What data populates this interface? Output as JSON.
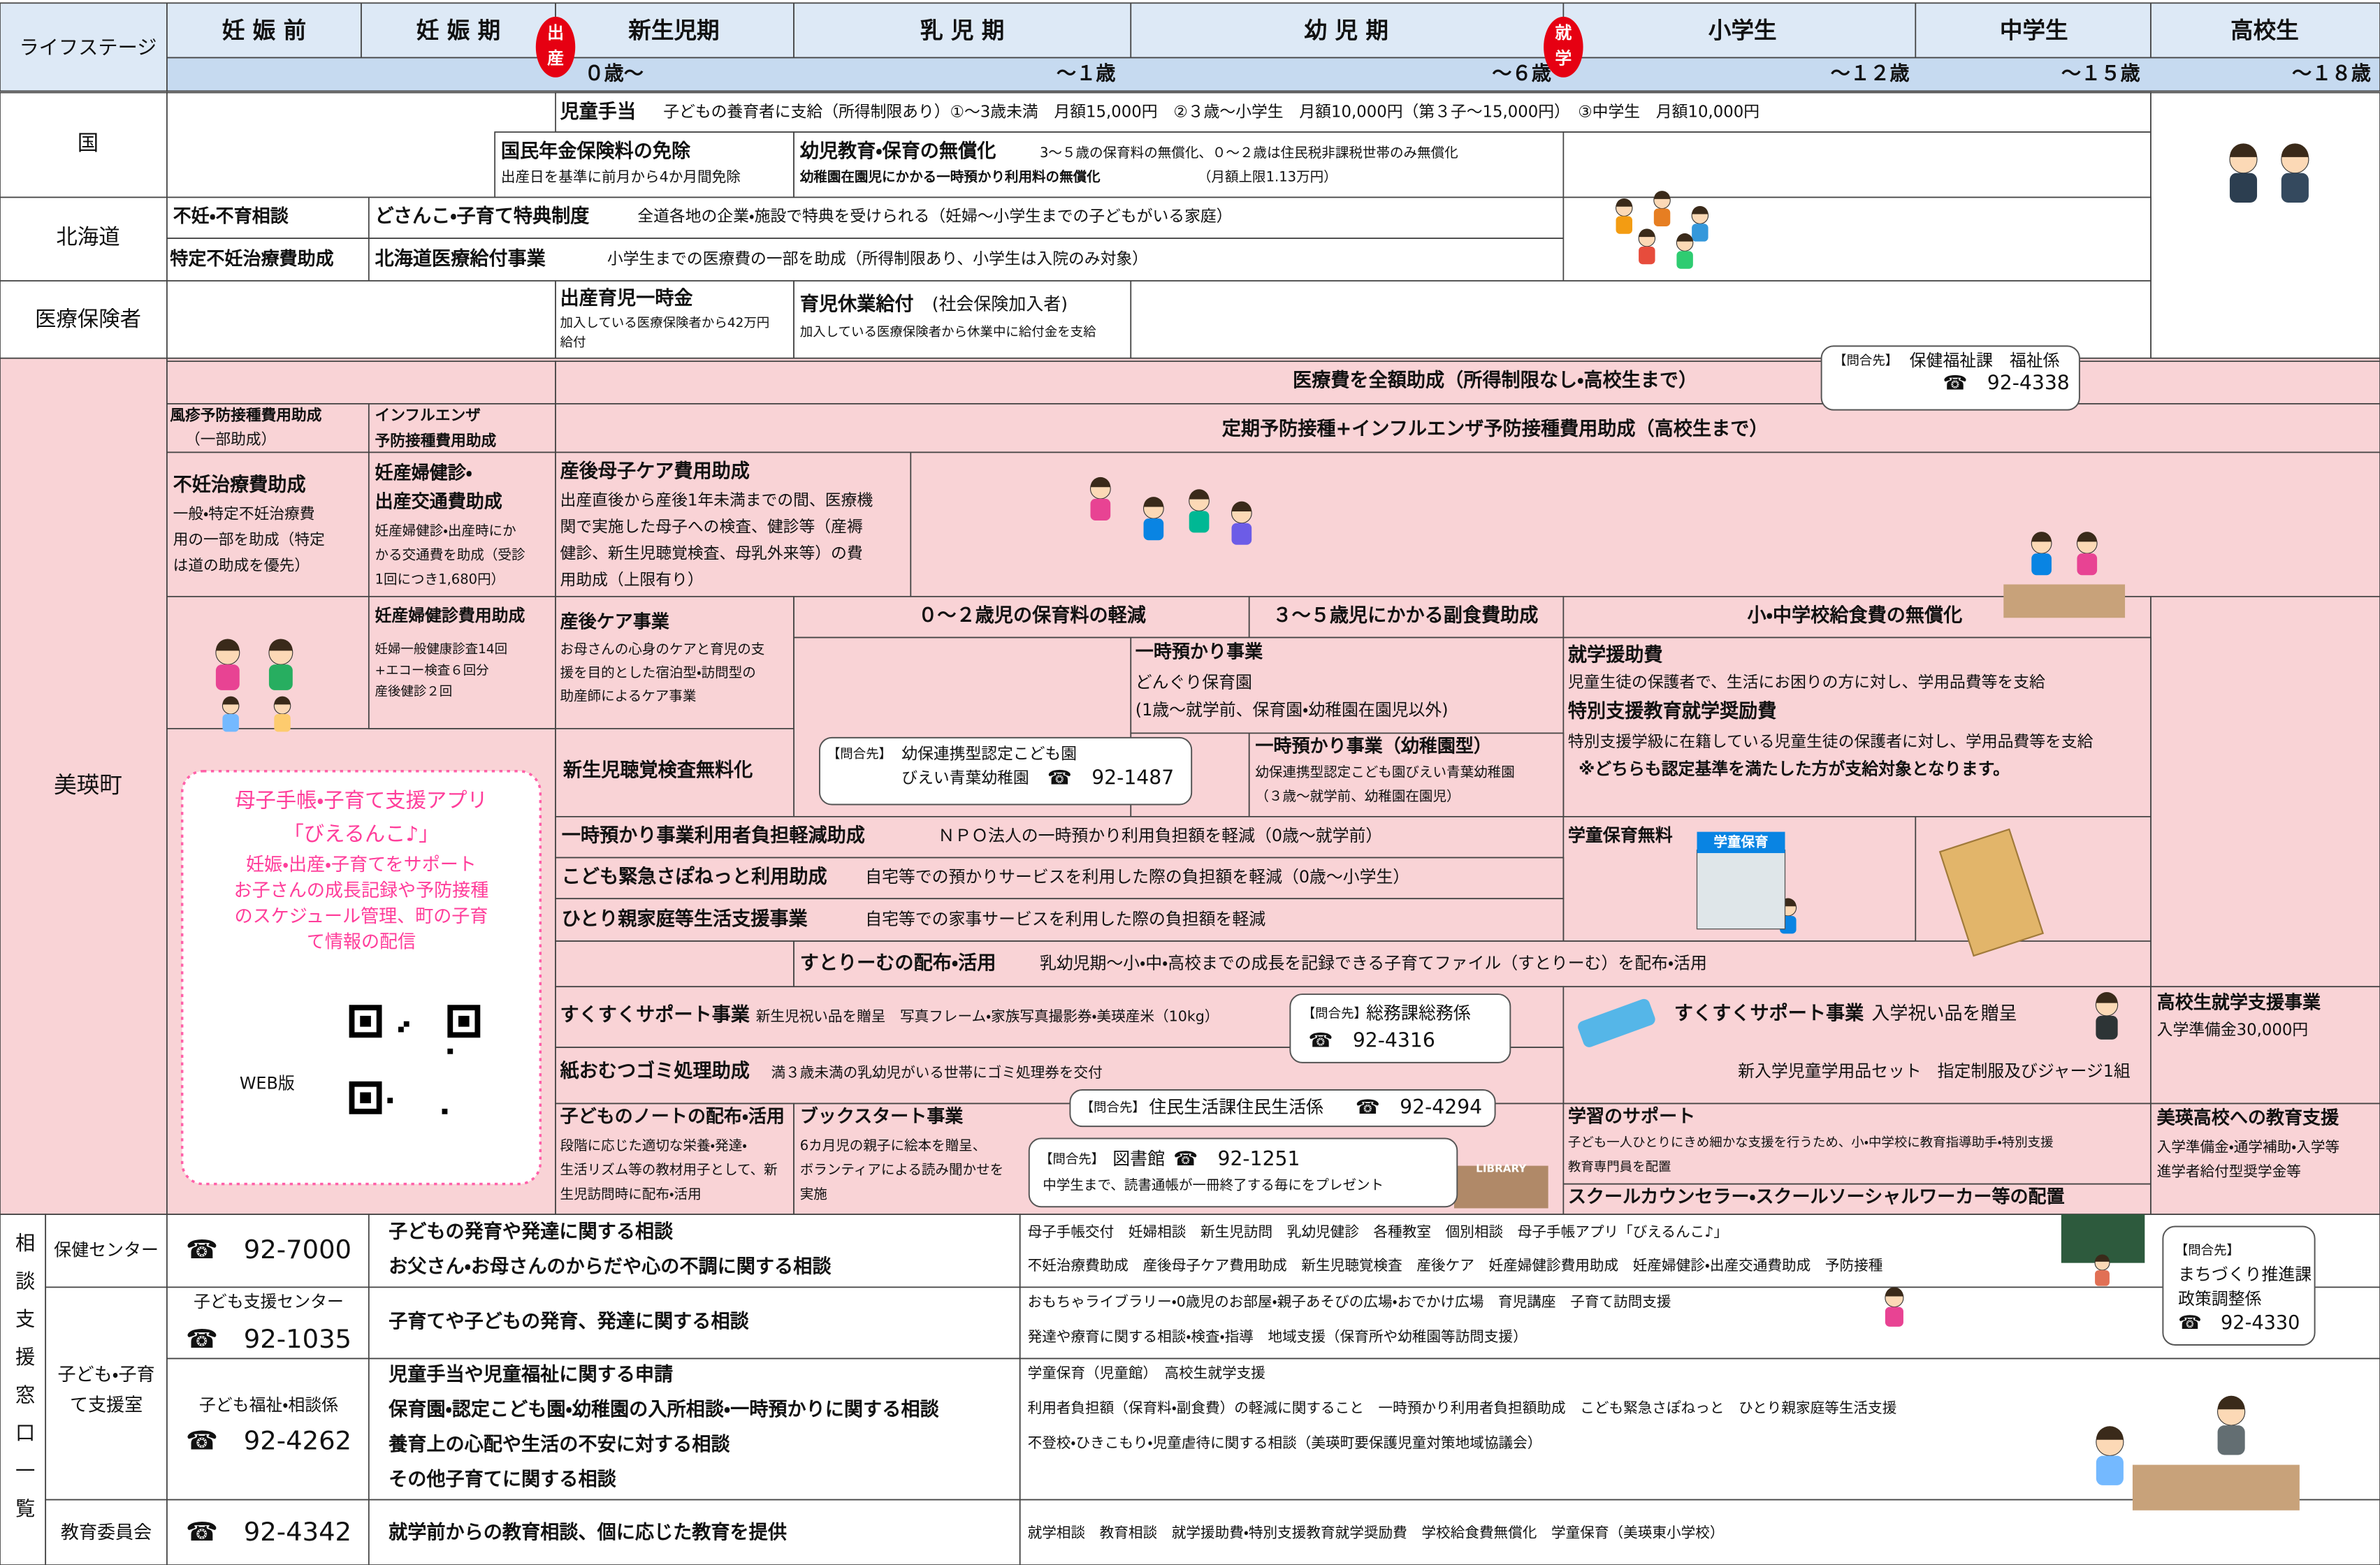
{
  "header": {
    "life_stage": "ライフステージ",
    "stages": [
      "妊 娠 前",
      "妊 娠 期",
      "新生児期",
      "乳 児 期",
      "幼 児 期",
      "小学生",
      "中学生",
      "高校生"
    ],
    "ages": [
      "０歳～",
      "～１歳",
      "～６歳",
      "～１２歳",
      "～１５歳",
      "～１８歳"
    ],
    "birth": [
      "出",
      "産"
    ],
    "school": [
      "就",
      "学"
    ]
  },
  "kuni": {
    "label": "国",
    "child_allowance": {
      "title": "児童手当",
      "text": "子どもの養育者に支給（所得制限あり）①～3歳未満　月額15,000円　②３歳～小学生　月額10,000円（第３子～15,000円）　③中学生　月額10,000円"
    },
    "pension": {
      "title": "国民年金保険料の免除",
      "note": "出産日を基準に前月から4か月間免除"
    },
    "free_education": {
      "title": "幼児教育・保育の無償化",
      "text": "3～５歳の保育料の無償化、０～２歳は住民税非課税世帯のみ無償化",
      "note": "幼稚園在園児にかかる一時預かり利用料の無償化",
      "limit": "（月額上限1.13万円）"
    }
  },
  "hokkaido": {
    "label": "北海道",
    "infertility_consult": "不妊・不育相談",
    "dosanko": {
      "title": "どさんこ・子育て特典制度",
      "text": "全道各地の企業・施設で特典を受けられる（妊婦～小学生までの子どもがいる家庭）"
    },
    "specific_infertility": "特定不妊治療費助成",
    "medical": {
      "title": "北海道医療給付事業",
      "text": "小学生までの医療費の一部を助成（所得制限あり、小学生は入院のみ対象）"
    }
  },
  "insurer": {
    "label": "医療保険者",
    "lump_sum": {
      "title": "出産育児一時金",
      "lines": [
        "加入している医療保険者から42万円",
        "給付"
      ]
    },
    "childcare_leave": {
      "title": "育児休業給付",
      "sub": "(社会保険加入者)",
      "note": "加入している医療保険者から休業中に給付金を支給"
    }
  },
  "biei": {
    "label": "美瑛町",
    "medical_free": "医療費を全額助成（所得制限なし・高校生まで）",
    "contact_welfare": {
      "tag": "【問合先】",
      "dept": "保健福祉課　福祉係",
      "phone": "☎　92-4338"
    },
    "rubella": {
      "title": "風疹予防接種費用助成",
      "sub": "（一部助成）"
    },
    "influenza": {
      "lines": [
        "インフルエンザ",
        "予防接種費用助成"
      ]
    },
    "vaccination": "定期予防接種+インフルエンザ予防接種費用助成（高校生まで）",
    "infertility": {
      "title": "不妊治療費助成",
      "lines": [
        "一般・特定不妊治療費",
        "用の一部を助成（特定",
        "は道の助成を優先）"
      ]
    },
    "checkup_transport": {
      "title": [
        "妊産婦健診・",
        "出産交通費助成"
      ],
      "lines": [
        "妊産婦健診・出産時にか",
        "かる交通費を助成（受診",
        "1回につき1,680円）"
      ]
    },
    "postpartum_care_cost": {
      "title": "産後母子ケア費用助成",
      "lines": [
        "出産直後から産後1年未満までの間、医療機",
        "関で実施した母子への検査、健診等（産褥",
        "健診、新生児聴覚検査、母乳外来等）の費",
        "用助成（上限有り）"
      ]
    },
    "checkup_cost": {
      "title": "妊産婦健診費用助成",
      "lines": [
        "妊婦一般健康診査14回",
        "+エコー検査６回分",
        "産後健診２回"
      ]
    },
    "postpartum_care": {
      "title": "産後ケア事業",
      "lines": [
        "お母さんの心身のケアと育児の支",
        "援を目的とした宿泊型・訪問型の",
        "助産師によるケア事業"
      ]
    },
    "nursery_fee": "０～２歳児の保育料の軽減",
    "side_dish": "３～５歳児にかかる副食費助成",
    "school_lunch": "小・中学校給食費の無償化",
    "temp_care": {
      "title": "一時預かり事業",
      "lines": [
        "どんぐり保育園",
        "(1歳～就学前、保育園・幼稚園在園児以外)"
      ]
    },
    "school_aid": {
      "title": "就学援助費",
      "text": "児童生徒の保護者で、生活にお困りの方に対し、学用品費等を支給",
      "special_title": "特別支援教育就学奨励費",
      "special_text": "特別支援学級に在籍している児童生徒の保護者に対し、学用品費等を支給",
      "note": "※どちらも認定基準を満たした方が支給対象となります。"
    },
    "hearing": "新生児聴覚検査無料化",
    "contact_kindergarten": {
      "tag": "【問合先】",
      "lines": [
        "幼保連携型認定こども園",
        "びえい青葉幼稚園"
      ],
      "phone": "☎　92-1487"
    },
    "temp_care_kg": {
      "title": "一時預かり事業（幼稚園型）",
      "lines": [
        "幼保連携型認定こども園びえい青葉幼稚園",
        "（３歳～就学前、幼稚園在園児）"
      ]
    },
    "temp_care_subsidy": {
      "title": "一時預かり事業利用者負担軽減助成",
      "text": "ＮＰＯ法人の一時預かり利用負担額を軽減（0歳～就学前）"
    },
    "after_school": "学童保育無料",
    "sign": "学童保育",
    "emergency": {
      "title": "こども緊急さぽねっと利用助成",
      "text": "自宅等での預かりサービスを利用した際の負担額を軽減（0歳～小学生）"
    },
    "single_parent": {
      "title": "ひとり親家庭等生活支援事業",
      "text": "自宅等での家事サービスを利用した際の負担額を軽減"
    },
    "stream": {
      "title": "すとりーむの配布・活用",
      "text": "乳幼児期～小・中・高校までの成長を記録できる子育てファイル（すとりーむ）を配布・活用"
    },
    "sukusuku_baby": {
      "title": "すくすくサポート事業",
      "text": "新生児祝い品を贈呈　写真フレーム・家族写真撮影券・美瑛産米（10kg）"
    },
    "contact_general": {
      "tag": "【問合先】",
      "dept": "総務課総務係",
      "phone": "☎　92-4316"
    },
    "sukusuku_school": {
      "title": "すくすくサポート事業",
      "text": "入学祝い品を贈呈",
      "items": [
        "新入学児童学用品セット",
        "指定制服及びジャージ1組"
      ]
    },
    "highschool_aid": {
      "title": "高校生就学支援事業",
      "text": "入学準備金30,000円"
    },
    "diaper": {
      "title": "紙おむつゴミ処理助成",
      "text": "満３歳未満の乳幼児がいる世帯にゴミ処理券を交付"
    },
    "contact_resident": {
      "tag": "【問合先】",
      "dept": "住民生活課住民生活係",
      "phone": "☎　92-4294"
    },
    "notebook": {
      "title": "子どものノートの配布・活用",
      "lines": [
        "段階に応じた適切な栄養・発達・",
        "生活リズム等の教材用子として、新",
        "生児訪問時に配布・活用"
      ]
    },
    "bookstart": {
      "title": "ブックスタート事業",
      "lines": [
        "6カ月児の親子に絵本を贈呈、",
        "ボランティアによる読み聞かせを",
        "実施"
      ]
    },
    "contact_library": {
      "tag": "【問合先】",
      "dept": "図書館",
      "phone": "☎　92-1251",
      "text": "中学生まで、読書通帳が一冊終了する毎にをプレゼント"
    },
    "library_sign": "LIBRARY",
    "learning": {
      "title": "学習のサポート",
      "lines": [
        "子ども一人ひとりにきめ細かな支援を行うため、小・中学校に教育指導助手・特別支援",
        "教育専門員を配置"
      ],
      "counselor": "スクールカウンセラー・スクールソーシャルワーカー等の配置"
    },
    "highschool_support": {
      "title": "美瑛高校への教育支援",
      "lines": [
        "入学準備金・通学補助・入学等",
        "進学者給付型奨学金等"
      ]
    },
    "app": {
      "lines": [
        "母子手帳・子育て支援アプリ",
        "「びえるんこ♪」"
      ],
      "text": [
        "妊娠・出産・子育てをサポート",
        "お子さんの成長記録や予防接種",
        "のスケジュール管理、町の子育",
        "て情報の配信"
      ],
      "web": "WEB版"
    }
  },
  "consultation": {
    "title": "相談支援窓口一覧",
    "health_center": {
      "name": "保健センター",
      "phone": "☎　92-7000",
      "topics": [
        "子どもの発育や発達に関する相談",
        "お父さん・お母さんのからだや心の不調に関する相談"
      ],
      "services": [
        "母子手帳交付　妊婦相談　新生児訪問　乳幼児健診　各種教室　個別相談　母子手帳アプリ「びえるんこ♪」",
        "不妊治療費助成　産後母子ケア費用助成　新生児聴覚検査　産後ケア　妊産婦健診費用助成　妊産婦健診・出産交通費助成　予防接種"
      ]
    },
    "child_office": {
      "name": [
        "子ども・子育",
        "て支援室"
      ],
      "center": {
        "name": "子ども支援センター",
        "phone": "☎　92-1035",
        "topics": [
          "子育てや子どもの発育、発達に関する相談"
        ],
        "services": [
          "おもちゃライブラリー・0歳児のお部屋・親子あそびの広場・おでかけ広場　育児講座　子育て訪問支援",
          "発達や療育に関する相談・検査・指導　地域支援（保育所や幼稚園等訪問支援）"
        ]
      },
      "welfare": {
        "name": "子ども福祉・相談係",
        "phone": "☎　92-4262",
        "topics": [
          "児童手当や児童福祉に関する申請",
          "保育園・認定こども園・幼稚園の入所相談・一時預かりに関する相談",
          "養育上の心配や生活の不安に対する相談",
          "その他子育てに関する相談"
        ],
        "services": [
          "学童保育（児童館）　高校生就学支援",
          "利用者負担額（保育料・副食費）の軽減に関すること　一時預かり利用者負担額助成　こども緊急さぽねっと　ひとり親家庭等生活支援",
          "不登校・ひきこもり・児童虐待に関する相談（美瑛町要保護児童対策地域協議会）"
        ]
      }
    },
    "education_board": {
      "name": "教育委員会",
      "phone": "☎　92-4342",
      "topics": [
        "就学前からの教育相談、個に応じた教育を提供"
      ],
      "services": [
        "就学相談　教育相談　就学援助費・特別支援教育就学奨励費　学校給食費無償化　学童保育（美瑛東小学校）"
      ]
    },
    "contact_planning": {
      "tag": "【問合先】",
      "lines": [
        "まちづくり推進課",
        "政策調整係"
      ],
      "phone": "☎　92-4330"
    }
  }
}
